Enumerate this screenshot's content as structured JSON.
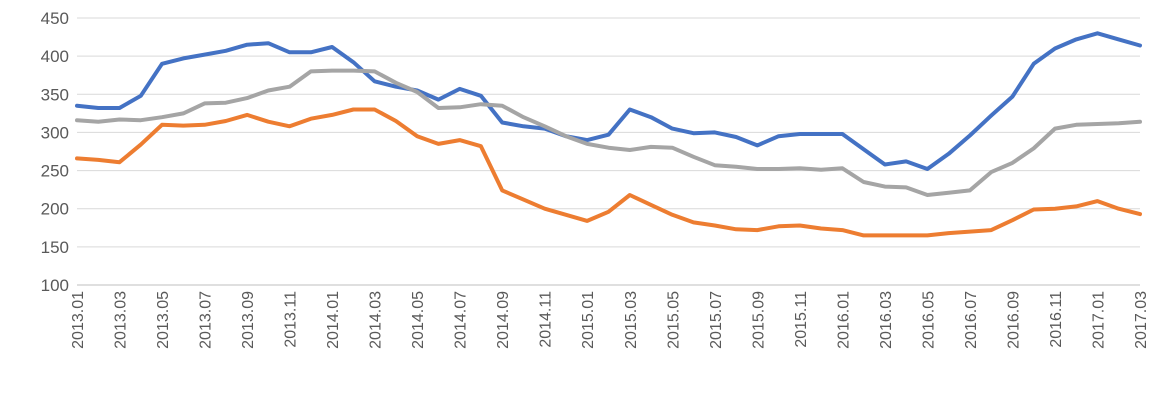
{
  "chart_data": {
    "type": "line",
    "title": "",
    "xlabel": "",
    "ylabel": "",
    "ylim": [
      100,
      450
    ],
    "yticks": [
      100,
      150,
      200,
      250,
      300,
      350,
      400,
      450
    ],
    "grid": true,
    "legend": "none",
    "categories": [
      "2013.01",
      "2013.02",
      "2013.03",
      "2013.04",
      "2013.05",
      "2013.06",
      "2013.07",
      "2013.08",
      "2013.09",
      "2013.10",
      "2013.11",
      "2013.12",
      "2014.01",
      "2014.02",
      "2014.03",
      "2014.04",
      "2014.05",
      "2014.06",
      "2014.07",
      "2014.08",
      "2014.09",
      "2014.10",
      "2014.11",
      "2014.12",
      "2015.01",
      "2015.02",
      "2015.03",
      "2015.04",
      "2015.05",
      "2015.06",
      "2015.07",
      "2015.08",
      "2015.09",
      "2015.10",
      "2015.11",
      "2015.12",
      "2016.01",
      "2016.02",
      "2016.03",
      "2016.04",
      "2016.05",
      "2016.06",
      "2016.07",
      "2016.08",
      "2016.09",
      "2016.10",
      "2016.11",
      "2016.12",
      "2017.01",
      "2017.02",
      "2017.03"
    ],
    "xtick_labels": [
      "2013.01",
      "2013.03",
      "2013.05",
      "2013.07",
      "2013.09",
      "2013.11",
      "2014.01",
      "2014.03",
      "2014.05",
      "2014.07",
      "2014.09",
      "2014.11",
      "2015.01",
      "2015.03",
      "2015.05",
      "2015.07",
      "2015.09",
      "2015.11",
      "2016.01",
      "2016.03",
      "2016.05",
      "2016.07",
      "2016.09",
      "2016.11",
      "2017.01",
      "2017.03"
    ],
    "series": [
      {
        "color": "#4472c4",
        "values": [
          335,
          332,
          332,
          348,
          390,
          397,
          402,
          407,
          415,
          417,
          405,
          405,
          412,
          392,
          367,
          360,
          355,
          343,
          357,
          348,
          313,
          308,
          305,
          295,
          290,
          297,
          330,
          320,
          305,
          299,
          300,
          294,
          283,
          295,
          298,
          298,
          298,
          278,
          258,
          262,
          252,
          272,
          296,
          322,
          347,
          390,
          410,
          422,
          430,
          422,
          414
        ]
      },
      {
        "color": "#a5a5a5",
        "values": [
          316,
          314,
          317,
          316,
          320,
          325,
          338,
          339,
          345,
          355,
          360,
          380,
          381,
          381,
          380,
          365,
          353,
          332,
          333,
          337,
          335,
          320,
          308,
          295,
          285,
          280,
          277,
          281,
          280,
          268,
          257,
          255,
          252,
          252,
          253,
          251,
          253,
          235,
          229,
          228,
          218,
          221,
          224,
          248,
          260,
          279,
          305,
          310,
          311,
          312,
          314
        ]
      },
      {
        "color": "#ed7d31",
        "values": [
          266,
          264,
          261,
          284,
          310,
          309,
          310,
          315,
          323,
          314,
          308,
          318,
          323,
          330,
          330,
          315,
          295,
          285,
          290,
          282,
          224,
          212,
          200,
          192,
          184,
          196,
          218,
          205,
          192,
          182,
          178,
          173,
          172,
          177,
          178,
          174,
          172,
          165,
          165,
          165,
          165,
          168,
          170,
          172,
          185,
          199,
          200,
          203,
          210,
          200,
          193
        ]
      }
    ]
  }
}
